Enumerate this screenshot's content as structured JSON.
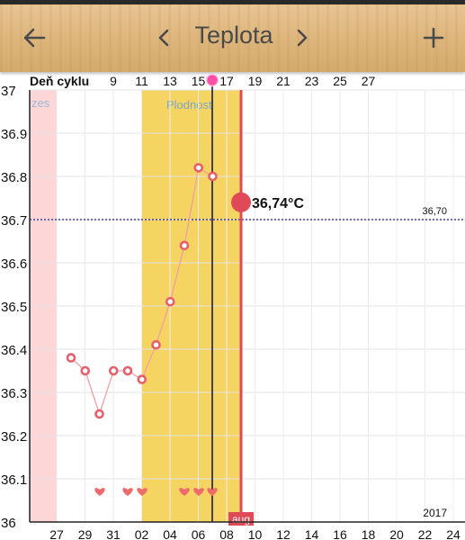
{
  "header": {
    "title": "Teplota"
  },
  "chart_data": {
    "type": "line",
    "cycle_label": "Deň cyklu",
    "cycle_ticks": [
      "9",
      "11",
      "13",
      "15",
      "17",
      "19",
      "21",
      "23",
      "25",
      "27"
    ],
    "date_ticks": [
      "27",
      "29",
      "31",
      "02",
      "04",
      "06",
      "08",
      "10",
      "12",
      "14",
      "16",
      "18",
      "20",
      "22",
      "24"
    ],
    "ylim": [
      36,
      37
    ],
    "y_ticks": [
      "37",
      "36.9",
      "36.8",
      "36.7",
      "36.6",
      "36.5",
      "36.4",
      "36.3",
      "36.2",
      "36.1",
      "36"
    ],
    "coverline": {
      "value": 36.7,
      "label": "36,70"
    },
    "current": {
      "value": 36.74,
      "label": "36,74°C"
    },
    "menses_label": "zes",
    "fertile_label": "Plodnosť",
    "month_label": "aug",
    "year_label": "2017",
    "series": [
      {
        "values": [
          36.38,
          36.35,
          36.25,
          36.35,
          36.35,
          36.33,
          36.41,
          36.51,
          36.64,
          36.82,
          36.8
        ]
      }
    ],
    "hearts_count": 6,
    "colors": {
      "menses": "#fdd7d7",
      "fertile": "#f6d462",
      "line": "#f0a0a0",
      "point": "#e8606a",
      "current": "#e04a56",
      "coverline": "#1a1aa0",
      "heart": "#ef6b6b",
      "ovulation": "#1a1a4a",
      "today": "#e04a56"
    }
  }
}
